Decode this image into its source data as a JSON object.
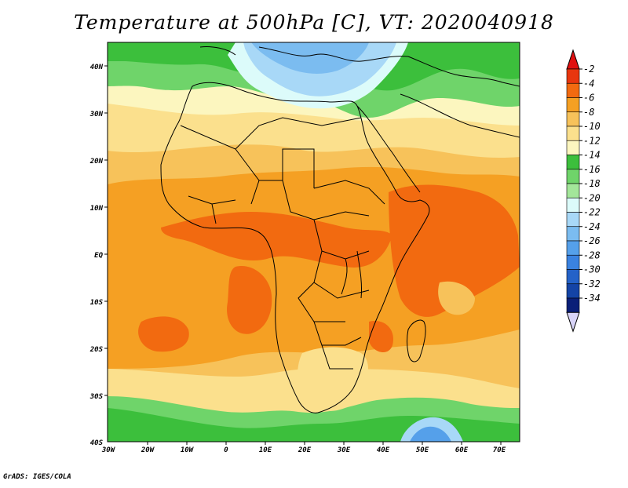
{
  "title": "Temperature at 500hPa [C], VT: 2020040918",
  "credit": "GrADS: IGES/COLA",
  "map": {
    "variable": "Temperature at 500hPa",
    "units": "C",
    "region": "Africa",
    "lat_labels": [
      "40N",
      "30N",
      "20N",
      "10N",
      "EQ",
      "10S",
      "20S",
      "30S",
      "40S"
    ],
    "lon_labels": [
      "30W",
      "20W",
      "10W",
      "0",
      "10E",
      "20E",
      "30E",
      "40E",
      "50E",
      "60E",
      "70E"
    ]
  },
  "colorbar": {
    "levels": [
      "-2",
      "-4",
      "-6",
      "-8",
      "-10",
      "-12",
      "-14",
      "-16",
      "-18",
      "-20",
      "-22",
      "-24",
      "-26",
      "-28",
      "-30",
      "-32",
      "-34"
    ],
    "colors": [
      "#e8360e",
      "#f26a10",
      "#f5a023",
      "#f7c25a",
      "#fbe08d",
      "#fcf6bf",
      "#3cbf3c",
      "#6fd46a",
      "#a3e69a",
      "#dcfbfa",
      "#a8d8f7",
      "#7bbcf0",
      "#55a0ea",
      "#3a82e0",
      "#2462c8",
      "#1444a6",
      "#0a1f78"
    ],
    "top_arrow_color": "#e01010",
    "bottom_arrow_color": "#d8d4f8"
  }
}
